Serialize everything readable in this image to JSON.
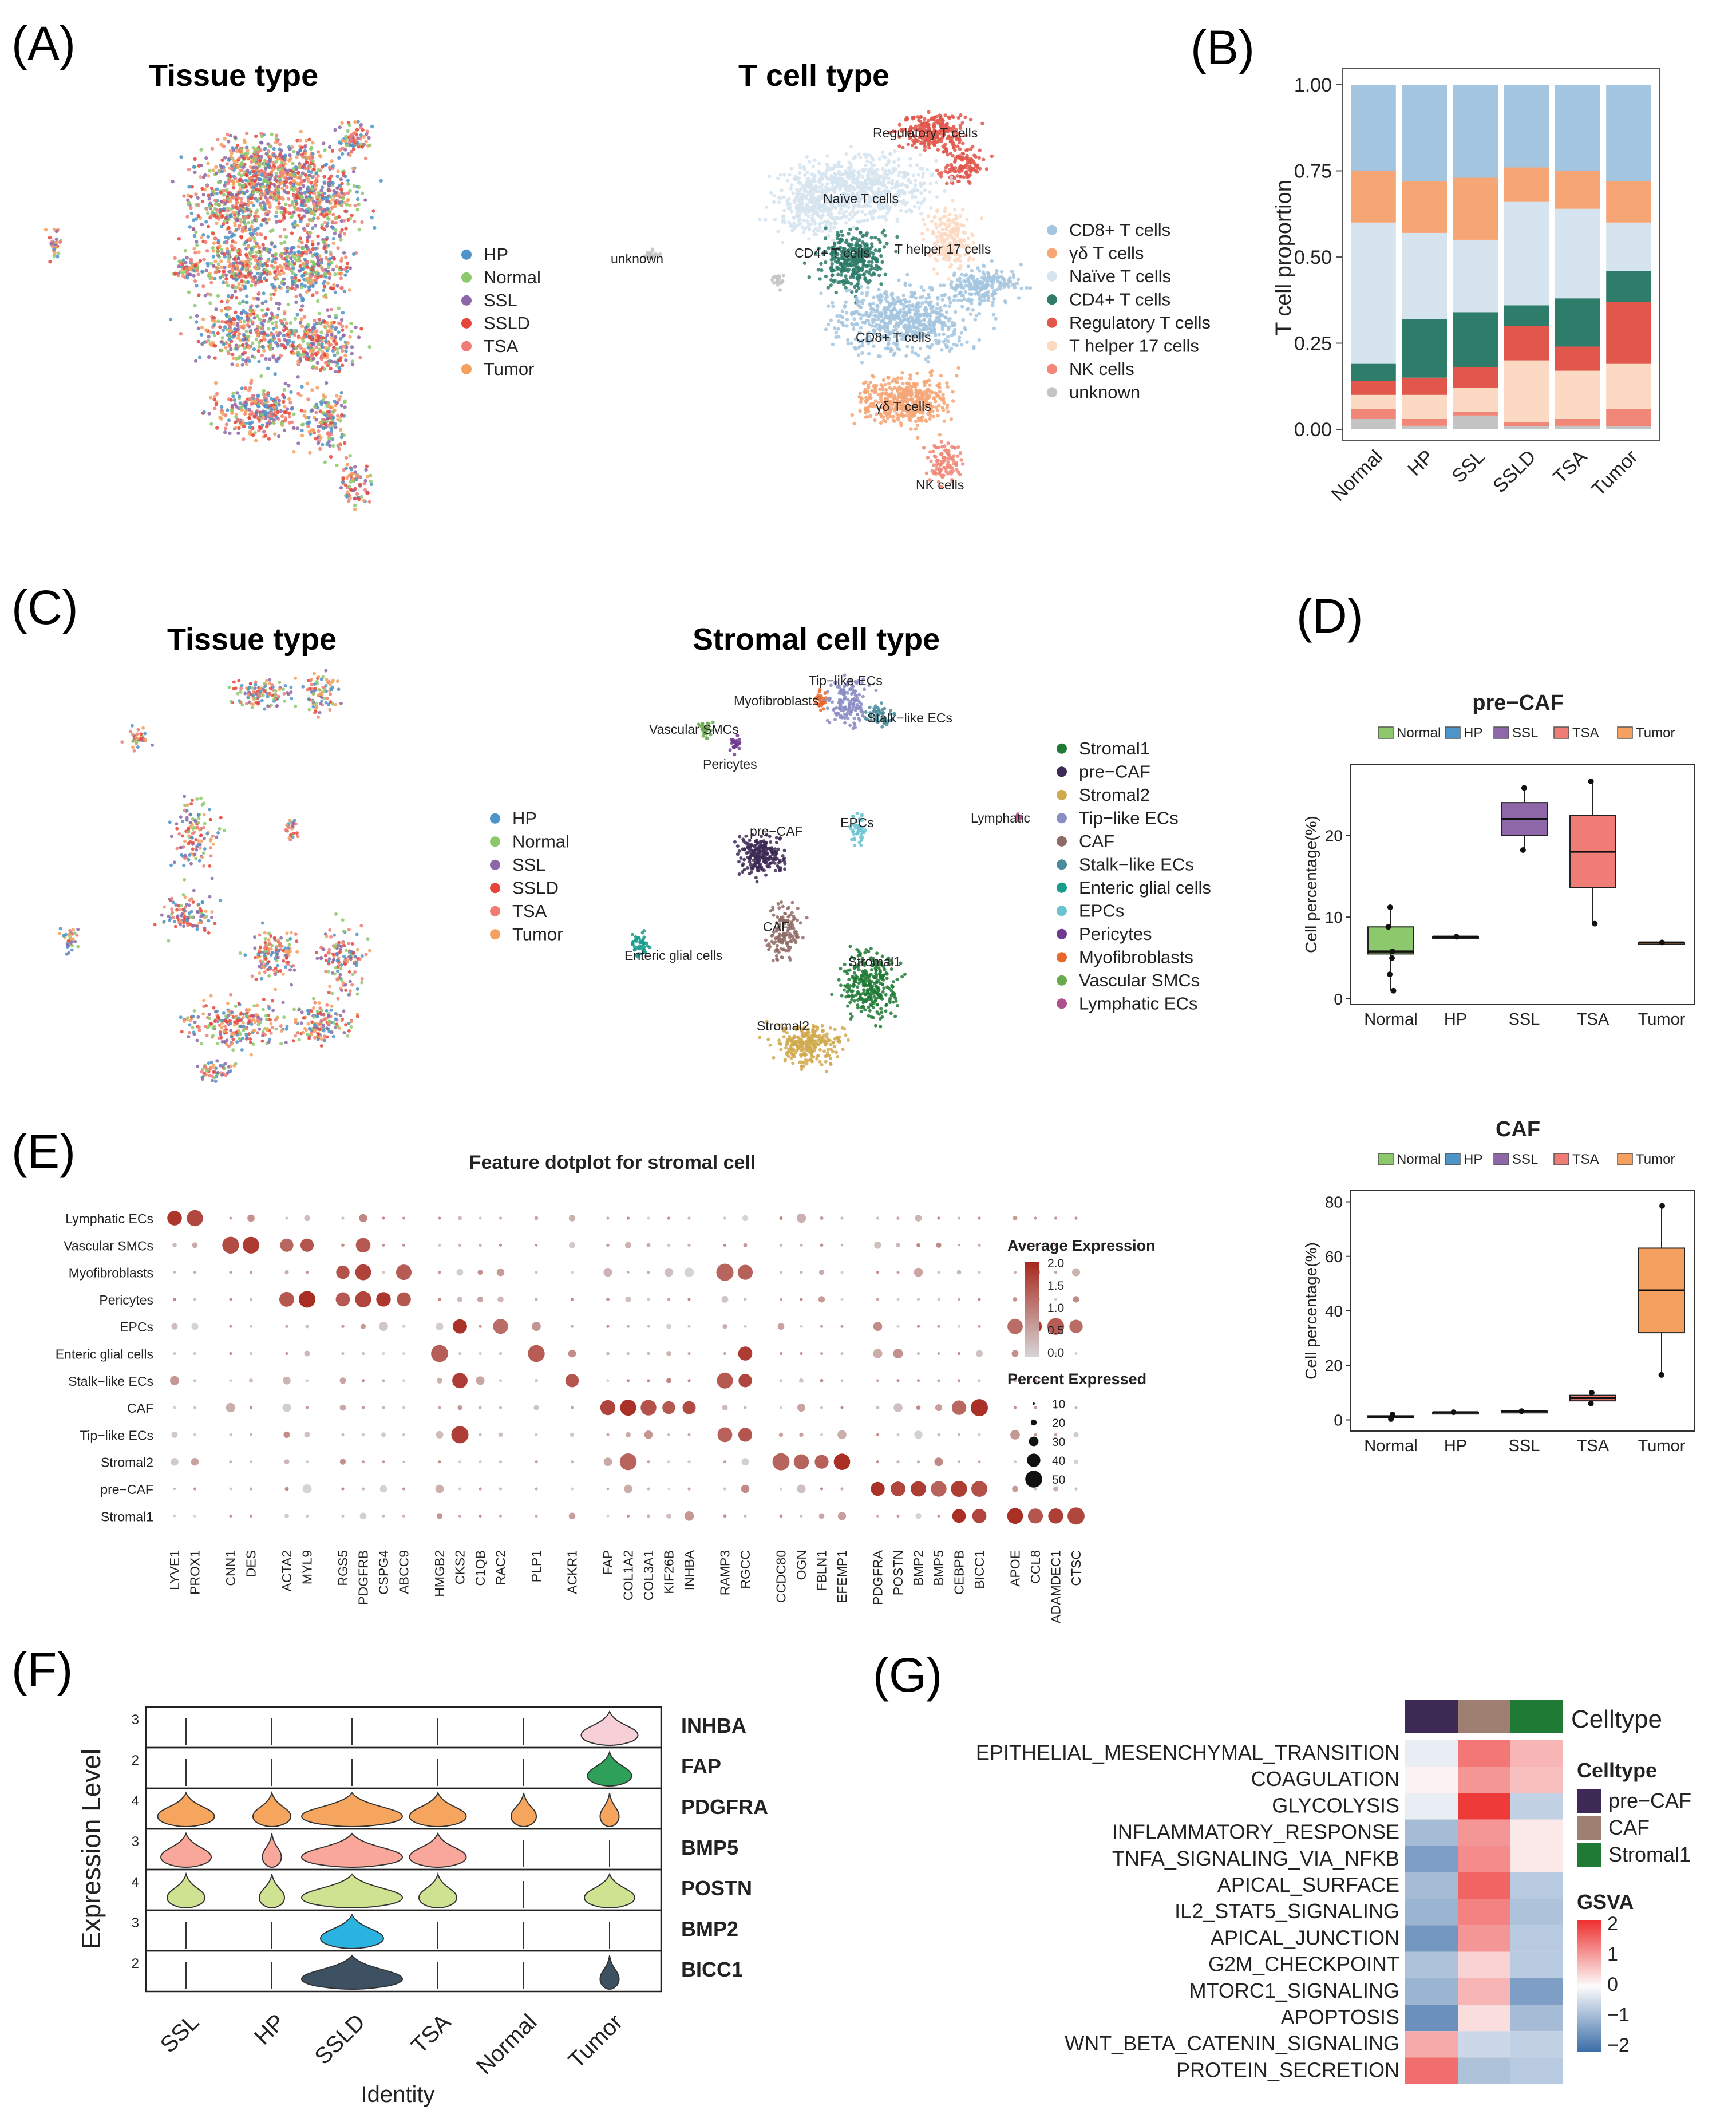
{
  "panels": {
    "A": {
      "label": "(A)",
      "umap1_title": "Tissue type",
      "umap1_legend": [
        "HP",
        "Normal",
        "SSL",
        "SSLD",
        "TSA",
        "Tumor"
      ],
      "umap1_colors": [
        "#4d94c8",
        "#8dc96c",
        "#8e67a8",
        "#e8453a",
        "#f07c76",
        "#f5a05e"
      ],
      "umap2_title": "T cell type",
      "umap2_labels": [
        "Regulatory T cells",
        "Naïve T cells",
        "CD4+ T cells",
        "T helper 17 cells",
        "CD8+ T cells",
        "γδ T cells",
        "NK cells",
        "unknown"
      ],
      "umap2_legend": [
        "CD8+ T cells",
        "γδ T cells",
        "Naïve T cells",
        "CD4+ T cells",
        "Regulatory T cells",
        "T helper 17 cells",
        "NK cells",
        "unknown"
      ],
      "umap2_colors": [
        "#a4c5df",
        "#f6a574",
        "#d6e4ef",
        "#2e7d6b",
        "#e2574c",
        "#fbd9c2",
        "#f08778",
        "#c4c4c4"
      ]
    },
    "B": {
      "label": "(B)"
    },
    "C": {
      "label": "(C)",
      "umap1_title": "Tissue type",
      "umap1_legend": [
        "HP",
        "Normal",
        "SSL",
        "SSLD",
        "TSA",
        "Tumor"
      ],
      "umap2_title": "Stromal cell type",
      "umap2_labels": [
        "Tip−like ECs",
        "Myofibroblasts",
        "Stalk−like ECs",
        "Vascular SMCs",
        "Pericytes",
        "pre−CAF",
        "EPCs",
        "Lymphatic",
        "CAF",
        "Enteric glial cells",
        "Stromal1",
        "Stromal2"
      ],
      "umap2_legend": [
        "Stromal1",
        "pre−CAF",
        "Stromal2",
        "Tip−like ECs",
        "CAF",
        "Stalk−like ECs",
        "Enteric glial cells",
        "EPCs",
        "Pericytes",
        "Myofibroblasts",
        "Vascular SMCs",
        "Lymphatic ECs"
      ],
      "umap2_colors": [
        "#1f7a35",
        "#3d2a55",
        "#d0a94e",
        "#8a8cc4",
        "#8f6b66",
        "#4b8c9c",
        "#189c8c",
        "#6cc4d0",
        "#6e3a8e",
        "#e8672f",
        "#6aaa4c",
        "#b0508e"
      ]
    },
    "D": {
      "label": "(D)"
    },
    "E": {
      "label": "(E)"
    },
    "F": {
      "label": "(F)"
    },
    "G": {
      "label": "(G)"
    }
  },
  "chart_data": [
    {
      "id": "B",
      "type": "bar",
      "stacked": true,
      "categories": [
        "Normal",
        "HP",
        "SSL",
        "SSLD",
        "TSA",
        "Tumor"
      ],
      "ylabel": "T cell proportion",
      "ylim": [
        0,
        1
      ],
      "yticks": [
        "0.00",
        "0.25",
        "0.50",
        "0.75",
        "1.00"
      ],
      "series": [
        {
          "name": "unknown",
          "color": "#c4c4c4",
          "values": [
            0.03,
            0.01,
            0.04,
            0.01,
            0.01,
            0.01
          ]
        },
        {
          "name": "NK cells",
          "color": "#f08778",
          "values": [
            0.03,
            0.02,
            0.01,
            0.01,
            0.02,
            0.05
          ]
        },
        {
          "name": "T helper 17 cells",
          "color": "#fbd9c2",
          "values": [
            0.04,
            0.07,
            0.07,
            0.18,
            0.14,
            0.13
          ]
        },
        {
          "name": "Regulatory T cells",
          "color": "#e2574c",
          "values": [
            0.04,
            0.05,
            0.06,
            0.1,
            0.07,
            0.18
          ]
        },
        {
          "name": "CD4+ T cells",
          "color": "#2e7d6b",
          "values": [
            0.05,
            0.17,
            0.16,
            0.06,
            0.14,
            0.09
          ]
        },
        {
          "name": "Naïve T cells",
          "color": "#d6e4ef",
          "values": [
            0.41,
            0.25,
            0.21,
            0.3,
            0.26,
            0.14
          ]
        },
        {
          "name": "γδ T cells",
          "color": "#f6a574",
          "values": [
            0.15,
            0.15,
            0.18,
            0.1,
            0.11,
            0.12
          ]
        },
        {
          "name": "CD8+ T cells",
          "color": "#a4c5df",
          "values": [
            0.25,
            0.28,
            0.27,
            0.24,
            0.25,
            0.28
          ]
        }
      ]
    },
    {
      "id": "D1",
      "type": "boxplot",
      "title": "pre−CAF",
      "legend": [
        "Normal",
        "HP",
        "SSL",
        "TSA",
        "Tumor"
      ],
      "colors": [
        "#8dc96c",
        "#4d94c8",
        "#8e67a8",
        "#f07c76",
        "#f5a05e"
      ],
      "categories": [
        "Normal",
        "HP",
        "SSL",
        "TSA",
        "Tumor"
      ],
      "ylabel": "Cell percentage(%)",
      "ylim": [
        0,
        28
      ],
      "yticks": [
        0,
        10,
        20
      ],
      "boxes": [
        {
          "min": 1,
          "q1": 5.5,
          "median": 5.8,
          "q3": 8.8,
          "max": 11.2,
          "points": [
            1,
            3,
            5,
            5.8,
            8.8,
            11.2
          ]
        },
        {
          "min": 7.6,
          "q1": 7.6,
          "median": 7.6,
          "q3": 7.6,
          "max": 7.6,
          "points": [
            7.6
          ]
        },
        {
          "min": 18.2,
          "q1": 20,
          "median": 22,
          "q3": 24,
          "max": 25.8,
          "points": [
            18.2,
            25.8
          ]
        },
        {
          "min": 9.2,
          "q1": 13.6,
          "median": 18,
          "q3": 22.4,
          "max": 26.6,
          "points": [
            9.2,
            26.6
          ]
        },
        {
          "min": 6.9,
          "q1": 6.9,
          "median": 6.9,
          "q3": 6.9,
          "max": 6.9,
          "points": [
            6.9
          ]
        }
      ]
    },
    {
      "id": "D2",
      "type": "boxplot",
      "title": "CAF",
      "legend": [
        "Normal",
        "HP",
        "SSL",
        "TSA",
        "Tumor"
      ],
      "colors": [
        "#8dc96c",
        "#4d94c8",
        "#8e67a8",
        "#f07c76",
        "#f5a05e"
      ],
      "categories": [
        "Normal",
        "HP",
        "SSL",
        "TSA",
        "Tumor"
      ],
      "ylabel": "Cell percentage(%)",
      "ylim": [
        -2,
        82
      ],
      "yticks": [
        0,
        20,
        40,
        60,
        80
      ],
      "boxes": [
        {
          "min": 0.3,
          "q1": 0.8,
          "median": 1,
          "q3": 1.5,
          "max": 2,
          "points": [
            0.3,
            2
          ]
        },
        {
          "min": 2.8,
          "q1": 2.8,
          "median": 2.8,
          "q3": 2.8,
          "max": 2.8,
          "points": [
            2.8
          ]
        },
        {
          "min": 3.2,
          "q1": 3.2,
          "median": 3.2,
          "q3": 3.2,
          "max": 3.2,
          "points": [
            3.2
          ]
        },
        {
          "min": 6,
          "q1": 7,
          "median": 8,
          "q3": 9,
          "max": 10,
          "points": [
            6,
            10
          ]
        },
        {
          "min": 16.5,
          "q1": 32,
          "median": 47.5,
          "q3": 63,
          "max": 78.5,
          "points": [
            16.5,
            78.5
          ]
        }
      ]
    },
    {
      "id": "E",
      "type": "dotplot",
      "title": "Feature dotplot for stromal cell",
      "rows": [
        "Lymphatic ECs",
        "Vascular SMCs",
        "Myofibroblasts",
        "Pericytes",
        "EPCs",
        "Enteric glial cells",
        "Stalk−like ECs",
        "CAF",
        "Tip−like ECs",
        "Stromal2",
        "pre−CAF",
        "Stromal1"
      ],
      "genes": [
        "LYVE1",
        "PROX1",
        "CNN1",
        "DES",
        "ACTA2",
        "MYL9",
        "RGS5",
        "PDGFRB",
        "CSPG4",
        "ABCC9",
        "HMGB2",
        "CKS2",
        "C1QB",
        "RAC2",
        "PLP1",
        "ACKR1",
        "FAP",
        "COL1A2",
        "COL3A1",
        "KIF26B",
        "INHBA",
        "RAMP3",
        "RGCC",
        "CCDC80",
        "OGN",
        "FBLN1",
        "EFEMP1",
        "PDGFRA",
        "POSTN",
        "BMP2",
        "BMP5",
        "CEBPB",
        "BICC1",
        "APOE",
        "CCL8",
        "ADAMDEC1",
        "CTSC"
      ],
      "groups": [
        2,
        2,
        2,
        4,
        4,
        1,
        1,
        5,
        2,
        4,
        6,
        4
      ],
      "legend_expr_title": "Average Expression",
      "legend_expr_ticks": [
        "2.0",
        "1.5",
        "1.0",
        "0.5",
        "0.0"
      ],
      "legend_pct_title": "Percent Expressed",
      "legend_pct_ticks": [
        "10",
        "20",
        "30",
        "40",
        "50"
      ]
    },
    {
      "id": "F",
      "type": "violin",
      "xlabel": "Identity",
      "ylabel": "Expression Level",
      "categories": [
        "SSL",
        "HP",
        "SSLD",
        "TSA",
        "Normal",
        "Tumor"
      ],
      "genes": [
        "INHBA",
        "FAP",
        "PDGFRA",
        "BMP5",
        "POSTN",
        "BMP2",
        "BICC1"
      ],
      "gene_ticks": [
        "3",
        "2",
        "4",
        "3",
        "4",
        "3",
        "2"
      ],
      "gene_colors": [
        "#f7cfd6",
        "#2fa05a",
        "#f5a55e",
        "#f8a79a",
        "#cfe291",
        "#2ab3e0",
        "#3e5163"
      ],
      "widths": [
        [
          0,
          0,
          0,
          0,
          0,
          0.9
        ],
        [
          0,
          0,
          0,
          0,
          0,
          0.7
        ],
        [
          0.9,
          0.6,
          1.6,
          0.9,
          0.4,
          0.3
        ],
        [
          0.8,
          0.3,
          1.6,
          0.9,
          0,
          0
        ],
        [
          0.6,
          0.4,
          1.6,
          0.6,
          0,
          0.8
        ],
        [
          0,
          0,
          1.0,
          0,
          0,
          0
        ],
        [
          0,
          0,
          1.6,
          0,
          0,
          0.3
        ]
      ]
    },
    {
      "id": "G",
      "type": "heatmap",
      "annotation_title": "Celltype",
      "columns": [
        "pre−CAF",
        "CAF",
        "Stromal1"
      ],
      "column_colors": [
        "#3d2a55",
        "#9e7f72",
        "#1f7a35"
      ],
      "rows": [
        "EPITHELIAL_MESENCHYMAL_TRANSITION",
        "COAGULATION",
        "GLYCOLYSIS",
        "INFLAMMATORY_RESPONSE",
        "TNFA_SIGNALING_VIA_NFKB",
        "APICAL_SURFACE",
        "IL2_STAT5_SIGNALING",
        "APICAL_JUNCTION",
        "G2M_CHECKPOINT",
        "MTORC1_SIGNALING",
        "APOPTOSIS",
        "WNT_BETA_CATENIN_SIGNALING",
        "PROTEIN_SECRETION"
      ],
      "values": [
        [
          -0.2,
          1.3,
          0.7
        ],
        [
          0.1,
          1.0,
          0.6
        ],
        [
          -0.2,
          1.9,
          -0.6
        ],
        [
          -0.9,
          1.0,
          0.2
        ],
        [
          -1.3,
          1.1,
          0.2
        ],
        [
          -0.9,
          1.5,
          -0.7
        ],
        [
          -1.0,
          1.2,
          -0.8
        ],
        [
          -1.4,
          1.0,
          -0.7
        ],
        [
          -0.8,
          0.4,
          -0.7
        ],
        [
          -1.0,
          0.7,
          -1.3
        ],
        [
          -1.5,
          0.3,
          -0.9
        ],
        [
          0.8,
          -0.5,
          -0.6
        ],
        [
          1.4,
          -0.8,
          -0.7
        ]
      ],
      "legend_title": "GSVA",
      "legend_ticks": [
        "2",
        "1",
        "0",
        "−1",
        "−2"
      ]
    }
  ]
}
